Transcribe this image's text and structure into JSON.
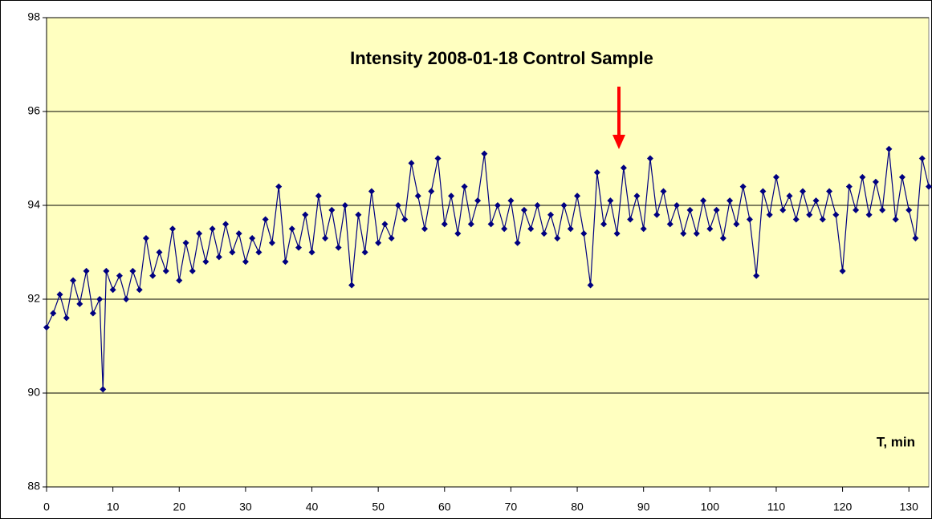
{
  "chart_data": {
    "type": "line",
    "title": "Intensity  2008-01-18 Control Sample",
    "x_label": "T, min",
    "x": [
      0,
      1,
      2,
      3,
      4,
      5,
      6,
      7,
      8,
      8.5,
      9,
      10,
      11,
      12,
      13,
      14,
      15,
      16,
      17,
      18,
      19,
      20,
      21,
      22,
      23,
      24,
      25,
      26,
      27,
      28,
      29,
      30,
      31,
      32,
      33,
      34,
      35,
      36,
      37,
      38,
      39,
      40,
      41,
      42,
      43,
      44,
      45,
      46,
      47,
      48,
      49,
      50,
      51,
      52,
      53,
      54,
      55,
      56,
      57,
      58,
      59,
      60,
      61,
      62,
      63,
      64,
      65,
      66,
      67,
      68,
      69,
      70,
      71,
      72,
      73,
      74,
      75,
      76,
      77,
      78,
      79,
      80,
      81,
      82,
      83,
      84,
      85,
      86,
      87,
      88,
      89,
      90,
      91,
      92,
      93,
      94,
      95,
      96,
      97,
      98,
      99,
      100,
      101,
      102,
      103,
      104,
      105,
      106,
      107,
      108,
      109,
      110,
      111,
      112,
      113,
      114,
      115,
      116,
      117,
      118,
      119,
      120,
      121,
      122,
      123,
      124,
      125,
      126,
      127,
      128,
      129,
      130,
      131,
      132,
      133
    ],
    "series": [
      {
        "name": "Intensity",
        "color": "#000080",
        "values": [
          91.4,
          91.7,
          92.1,
          91.6,
          92.4,
          91.9,
          92.6,
          91.7,
          92.0,
          90.08,
          92.6,
          92.2,
          92.5,
          92.0,
          92.6,
          92.2,
          93.3,
          92.5,
          93.0,
          92.6,
          93.5,
          92.4,
          93.2,
          92.6,
          93.4,
          92.8,
          93.5,
          92.9,
          93.6,
          93.0,
          93.4,
          92.8,
          93.3,
          93.0,
          93.7,
          93.2,
          94.4,
          92.8,
          93.5,
          93.1,
          93.8,
          93.0,
          94.2,
          93.3,
          93.9,
          93.1,
          94.0,
          92.3,
          93.8,
          93.0,
          94.3,
          93.2,
          93.6,
          93.3,
          94.0,
          93.7,
          94.9,
          94.2,
          93.5,
          94.3,
          95.0,
          93.6,
          94.2,
          93.4,
          94.4,
          93.6,
          94.1,
          95.1,
          93.6,
          94.0,
          93.5,
          94.1,
          93.2,
          93.9,
          93.5,
          94.0,
          93.4,
          93.8,
          93.3,
          94.0,
          93.5,
          94.2,
          93.4,
          92.3,
          94.7,
          93.6,
          94.1,
          93.4,
          94.8,
          93.7,
          94.2,
          93.5,
          95.0,
          93.8,
          94.3,
          93.6,
          94.0,
          93.4,
          93.9,
          93.4,
          94.1,
          93.5,
          93.9,
          93.3,
          94.1,
          93.6,
          94.4,
          93.7,
          92.5,
          94.3,
          93.8,
          94.6,
          93.9,
          94.2,
          93.7,
          94.3,
          93.8,
          94.1,
          93.7,
          94.3,
          93.8,
          92.6,
          94.4,
          93.9,
          94.6,
          93.8,
          94.5,
          93.9,
          95.2,
          93.7,
          94.6,
          93.9,
          93.3,
          95.0,
          94.4
        ]
      }
    ],
    "xlim": [
      0,
      133
    ],
    "ylim": [
      88,
      98
    ],
    "xticks": [
      0,
      10,
      20,
      30,
      40,
      50,
      60,
      70,
      80,
      90,
      100,
      110,
      120,
      130
    ],
    "yticks": [
      88,
      90,
      92,
      94,
      96,
      98
    ],
    "grid": true
  }
}
